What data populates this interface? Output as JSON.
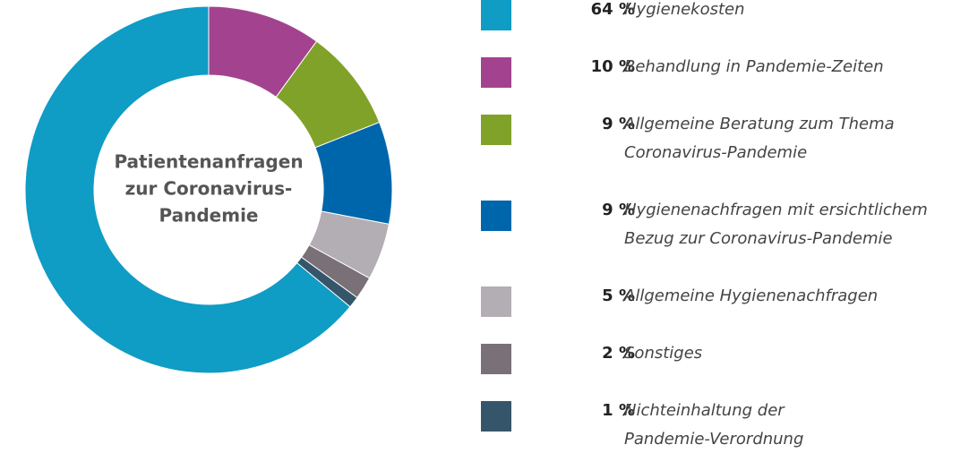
{
  "chart_data": {
    "type": "donut",
    "title": [
      "Patientenanfragen",
      "zur Coronavirus-",
      "Pandemie"
    ],
    "categories": [
      "Hygienekosten",
      "Behandlung in Pandemie-Zeiten",
      "Allgemeine Beratung zum Thema\nCoronavirus-Pandemie",
      "Hygienenachfragen mit ersichtlichem\nBezug zur Coronavirus-Pandemie",
      "Allgemeine Hygienenachfragen",
      "Sonstiges",
      "Nichteinhaltung der\nPandemie-Verordnung"
    ],
    "values": [
      64,
      10,
      9,
      9,
      5,
      2,
      1
    ],
    "value_labels": [
      "64 %",
      "10 %",
      "9 %",
      "9 %",
      "5 %",
      "2 %",
      "1 %"
    ],
    "colors": [
      "#0f9cc5",
      "#a3438f",
      "#80a229",
      "#0066ab",
      "#b3aeb3",
      "#7a7077",
      "#35566a"
    ]
  }
}
